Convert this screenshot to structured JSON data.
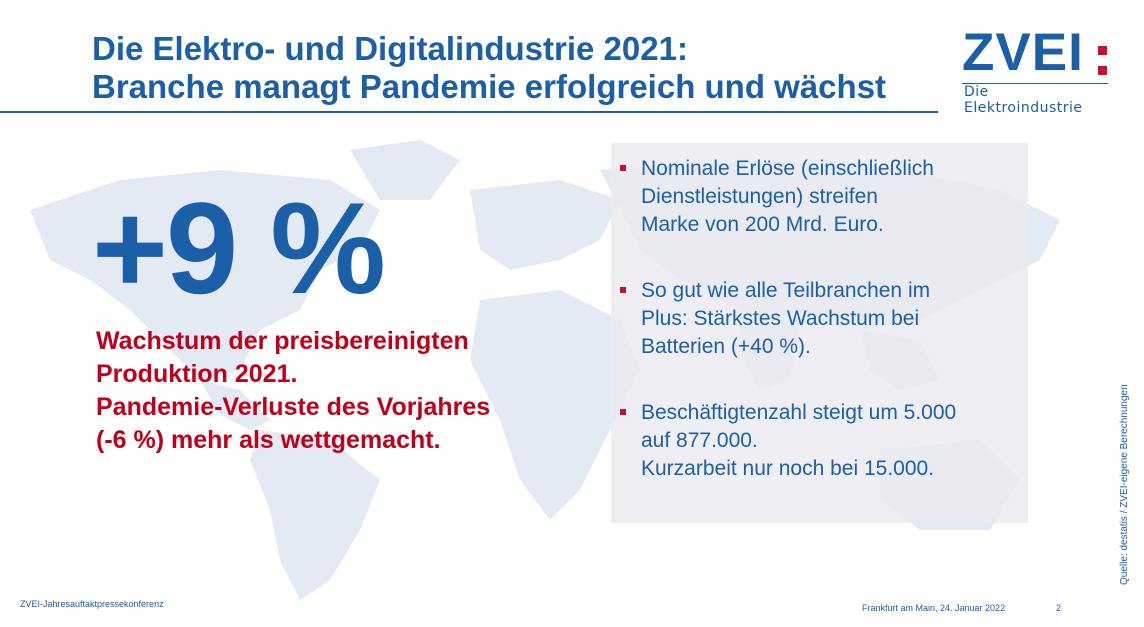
{
  "slide": {
    "title_line1": "Die Elektro- und Digitalindustrie 2021:",
    "title_line2": "Branche managt Pandemie erfolgreich und wächst"
  },
  "logo": {
    "word": "ZVEI",
    "subtitle": "Die Elektroindustrie"
  },
  "headline_figure": "+9 %",
  "red_text": [
    "Wachstum der preisbereinigten",
    "Produktion 2021.",
    "Pandemie-Verluste des Vorjahres",
    "(-6 %) mehr als wettgemacht."
  ],
  "bullets": [
    {
      "lines": [
        "Nominale Erlöse (einschließlich",
        "Dienstleistungen) streifen",
        "Marke von 200 Mrd. Euro."
      ]
    },
    {
      "lines": [
        "So gut wie alle Teilbranchen im",
        "Plus: Stärkstes Wachstum bei",
        "Batterien (+40 %)."
      ]
    },
    {
      "lines": [
        "Beschäftigtenzahl steigt um 5.000",
        "auf 877.000.",
        "Kurzarbeit nur noch bei 15.000."
      ]
    }
  ],
  "source_note": "Quelle: destatis / ZVEI-eigene Berechnungen",
  "footer": {
    "event": "ZVEI-Jahresauftaktpressekonferenz",
    "place_date": "Frankfurt am Main, 24. Januar 2022",
    "page_number": "2"
  },
  "colors": {
    "brand_blue": "#1a5fa8",
    "accent_red": "#c0001a",
    "map_tint": "#e3eaf3"
  },
  "icons": {
    "background": "world-map-icon",
    "bullet": "red-square-bullet-icon"
  }
}
